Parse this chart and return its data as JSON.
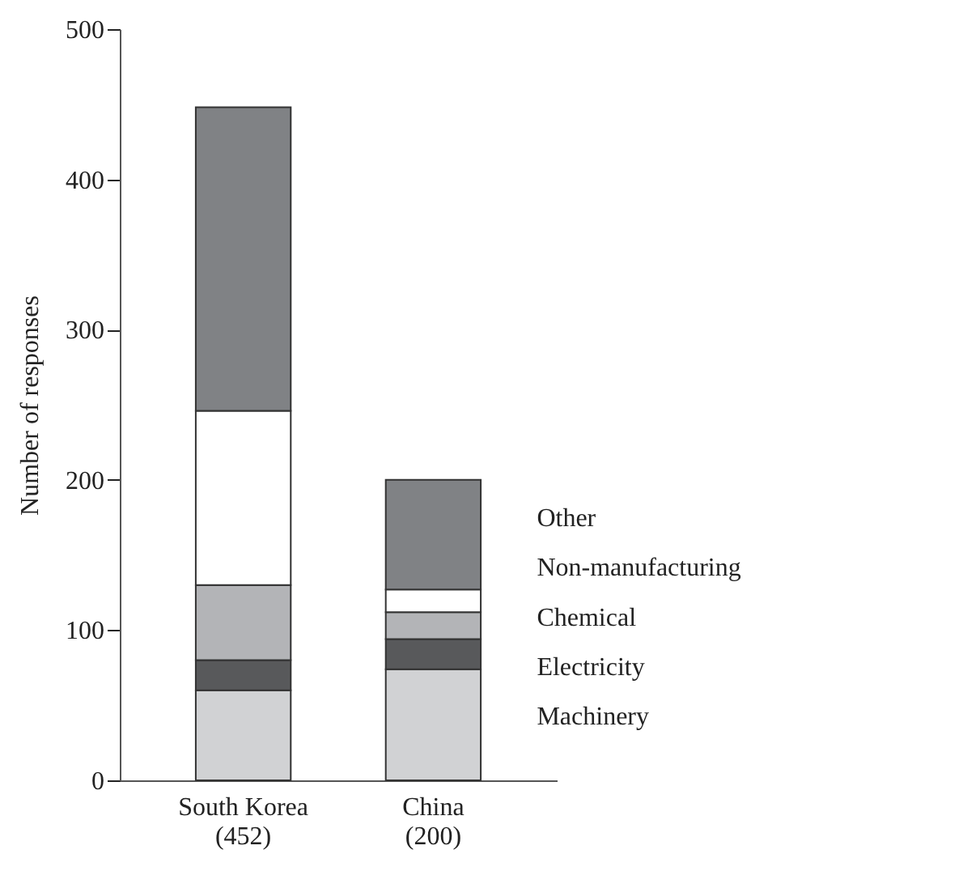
{
  "chart_data": {
    "type": "bar",
    "stacked": true,
    "ylabel": "Number of responses",
    "categories": [
      "South Korea\n(452)",
      "China\n(200)"
    ],
    "series": [
      {
        "name": "Machinery",
        "color": "#d1d2d4",
        "values": [
          60,
          74
        ]
      },
      {
        "name": "Electricity",
        "color": "#58595b",
        "values": [
          20,
          20
        ]
      },
      {
        "name": "Chemical",
        "color": "#b3b4b7",
        "values": [
          50,
          18
        ]
      },
      {
        "name": "Non-manufacturing",
        "color": "#ffffff",
        "values": [
          116,
          15
        ]
      },
      {
        "name": "Other",
        "color": "#808285",
        "values": [
          202,
          73
        ]
      }
    ],
    "ylim": [
      0,
      500
    ],
    "yticks": [
      0,
      100,
      200,
      300,
      400,
      500
    ],
    "grid": false,
    "legend": false
  }
}
